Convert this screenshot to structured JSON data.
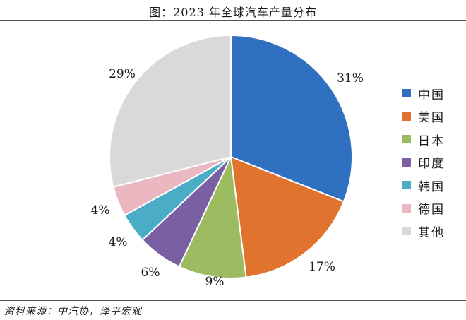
{
  "title": "图：2023 年全球汽车产量分布",
  "source": "资料来源：中汽协，泽平宏观",
  "chart_data": {
    "type": "pie",
    "title": "图：2023 年全球汽车产量分布",
    "legend_position": "right",
    "slices": [
      {
        "label": "中国",
        "value": 31,
        "value_label": "31%",
        "color": "#3070C0"
      },
      {
        "label": "美国",
        "value": 17,
        "value_label": "17%",
        "color": "#E0742E"
      },
      {
        "label": "日本",
        "value": 9,
        "value_label": "9%",
        "color": "#9DBB61"
      },
      {
        "label": "印度",
        "value": 6,
        "value_label": "6%",
        "color": "#7A5FA3"
      },
      {
        "label": "韩国",
        "value": 4,
        "value_label": "4%",
        "color": "#4AACC5"
      },
      {
        "label": "德国",
        "value": 4,
        "value_label": "4%",
        "color": "#EBB7C0"
      },
      {
        "label": "其他",
        "value": 29,
        "value_label": "29%",
        "color": "#D9D9D9"
      }
    ]
  }
}
